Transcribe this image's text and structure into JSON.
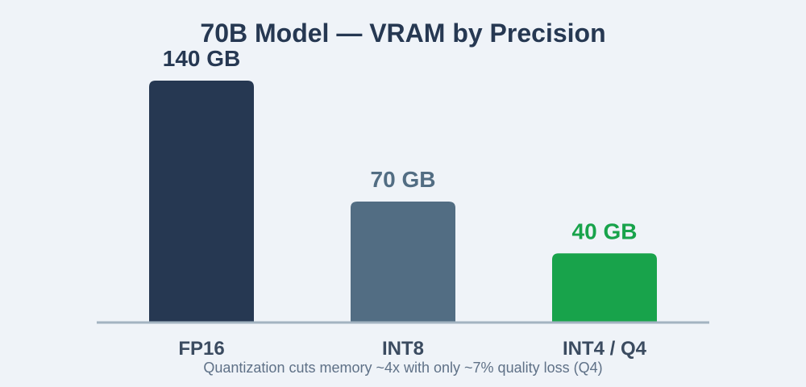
{
  "colors": {
    "background": "#eff3f8",
    "axis": "#a3b3c1",
    "fp16": "#263852",
    "int8": "#526d83",
    "int4": "#18a34b"
  },
  "chart_data": {
    "type": "bar",
    "title": "70B Model — VRAM by Precision",
    "categories": [
      "FP16",
      "INT8",
      "INT4 / Q4"
    ],
    "values": [
      140,
      70,
      40
    ],
    "value_labels": [
      "140 GB",
      "70 GB",
      "40 GB"
    ],
    "unit": "GB",
    "bar_colors": [
      "#263852",
      "#526d83",
      "#18a34b"
    ],
    "label_colors": [
      "#263852",
      "#526d83",
      "#18a34b"
    ],
    "ylim": [
      0,
      140
    ],
    "grid": false,
    "legend": "none"
  },
  "caption": "Quantization cuts memory ~4x with only ~7% quality loss (Q4)"
}
